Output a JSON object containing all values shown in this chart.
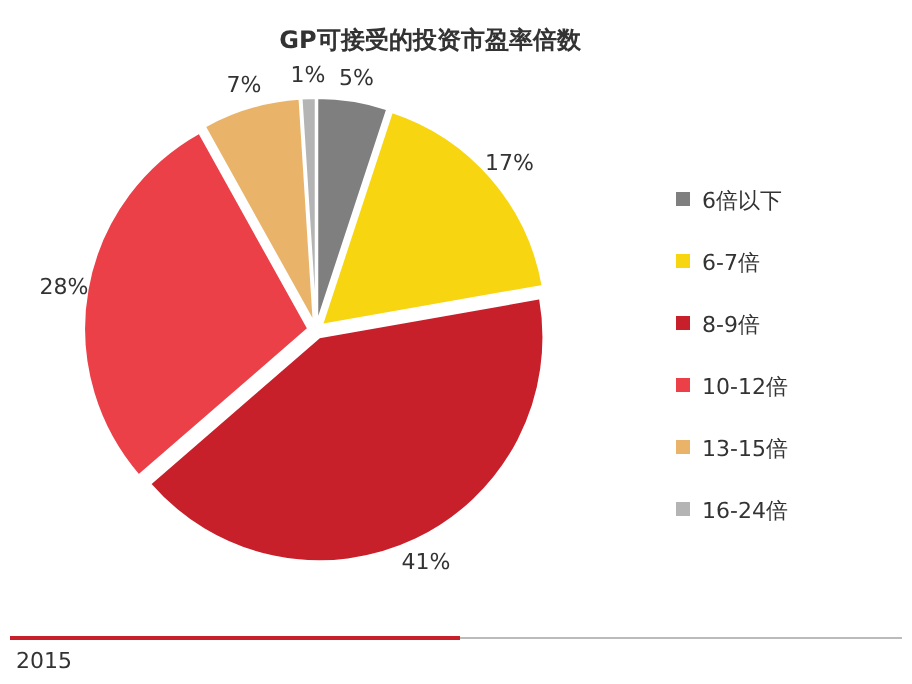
{
  "chart_data": {
    "type": "pie",
    "title": "GP可接受的投资市盈率倍数",
    "categories": [
      "6倍以下",
      "6-7倍",
      "8-9倍",
      "10-12倍",
      "13-15倍",
      "16-24倍"
    ],
    "values": [
      5,
      17,
      41,
      28,
      7,
      1
    ],
    "value_labels": [
      "5%",
      "17%",
      "41%",
      "28%",
      "7%",
      "1%"
    ],
    "colors": [
      "#7f7f7f",
      "#f7d511",
      "#c8202b",
      "#ec4049",
      "#e9b46a",
      "#b4b4b4"
    ],
    "legend": "right",
    "annotations": [
      "2015"
    ]
  }
}
